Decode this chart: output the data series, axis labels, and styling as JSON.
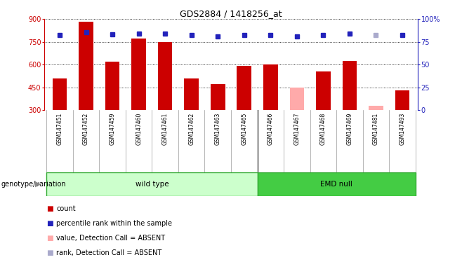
{
  "title": "GDS2884 / 1418256_at",
  "samples": [
    "GSM147451",
    "GSM147452",
    "GSM147459",
    "GSM147460",
    "GSM147461",
    "GSM147462",
    "GSM147463",
    "GSM147465",
    "GSM147466",
    "GSM147467",
    "GSM147468",
    "GSM147469",
    "GSM147481",
    "GSM147493"
  ],
  "bar_values": [
    510,
    880,
    620,
    770,
    750,
    510,
    470,
    590,
    600,
    450,
    555,
    625,
    330,
    430
  ],
  "bar_absent": [
    false,
    false,
    false,
    false,
    false,
    false,
    false,
    false,
    false,
    true,
    false,
    false,
    true,
    false
  ],
  "rank_values": [
    82,
    85,
    83,
    84,
    84,
    82,
    81,
    82,
    82,
    81,
    82,
    84,
    82,
    82
  ],
  "rank_absent": [
    false,
    false,
    false,
    false,
    false,
    false,
    false,
    false,
    false,
    false,
    false,
    false,
    true,
    false
  ],
  "ylim_left": [
    300,
    900
  ],
  "ylim_right": [
    0,
    100
  ],
  "yticks_left": [
    300,
    450,
    600,
    750,
    900
  ],
  "yticks_right": [
    0,
    25,
    50,
    75,
    100
  ],
  "n_wildtype": 8,
  "n_total": 14,
  "color_bar_present": "#cc0000",
  "color_bar_absent": "#ffaaaa",
  "color_rank_present": "#2222bb",
  "color_rank_absent": "#aaaacc",
  "color_wildtype_bg": "#ccffcc",
  "color_emdnull_bg": "#44cc44",
  "color_xtick_bg": "#cccccc",
  "legend_items": [
    "count",
    "percentile rank within the sample",
    "value, Detection Call = ABSENT",
    "rank, Detection Call = ABSENT"
  ]
}
